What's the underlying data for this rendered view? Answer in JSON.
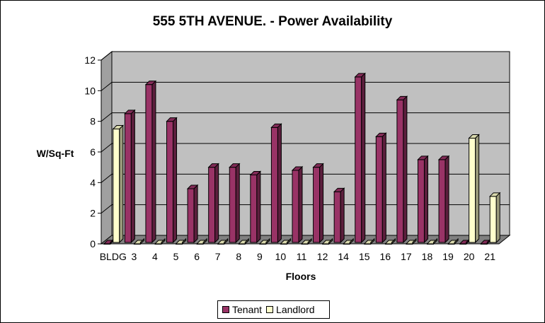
{
  "chart_data": {
    "type": "bar",
    "title": "555 5TH AVENUE. - Power Availability",
    "xlabel": "Floors",
    "ylabel": "W/Sq-Ft",
    "ylim": [
      0,
      12
    ],
    "yticks": [
      0,
      2,
      4,
      6,
      8,
      10,
      12
    ],
    "grid": true,
    "legend_position": "bottom",
    "categories": [
      "BLDG",
      "3",
      "4",
      "5",
      "6",
      "7",
      "8",
      "9",
      "10",
      "11",
      "12",
      "14",
      "15",
      "16",
      "17",
      "18",
      "19",
      "20",
      "21"
    ],
    "series": [
      {
        "name": "Tenant",
        "color": "#993366",
        "values": [
          0,
          8.5,
          10.4,
          8.0,
          3.6,
          5.0,
          5.0,
          4.5,
          7.6,
          4.8,
          5.0,
          3.4,
          10.9,
          7.0,
          9.4,
          5.5,
          5.5,
          0,
          0
        ]
      },
      {
        "name": "Landlord",
        "color": "#FFFFCC",
        "values": [
          7.5,
          0,
          0,
          0,
          0,
          0,
          0,
          0,
          0,
          0,
          0,
          0,
          0,
          0,
          0,
          0,
          0,
          6.9,
          3.1
        ]
      }
    ],
    "colors": {
      "plot_wall": "#C0C0C0",
      "plot_floor": "#808080"
    }
  }
}
